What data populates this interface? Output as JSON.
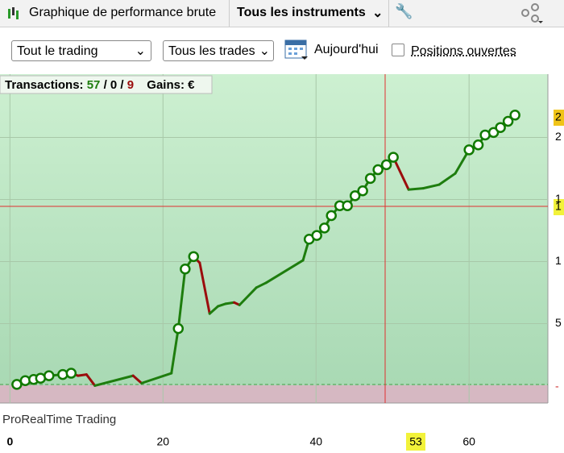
{
  "toolbar": {
    "tab_title": "Graphique de performance brute",
    "instruments": "Tous les instruments"
  },
  "controls": {
    "select_trading": "Tout le trading",
    "select_trades": "Tous les trades",
    "date": "Aujourd'hui",
    "checkbox": "Positions ouvertes"
  },
  "chart_data": {
    "type": "line",
    "legend": {
      "label": "Transactions:",
      "wins": "57",
      "sep1": "/",
      "neutral": "0",
      "sep2": "/",
      "losses": "9",
      "gains": "Gains: €"
    },
    "watermark": "ProRealTime Trading",
    "x": [
      0.9,
      2.0,
      3.1,
      4.0,
      5.1,
      6.9,
      8.0,
      8.9,
      10.0,
      11.1,
      16.1,
      17.2,
      21.1,
      22.0,
      22.9,
      24.0,
      24.8,
      26.1,
      27.2,
      28.2,
      29.3,
      30.0,
      32.2,
      33.5,
      38.3,
      39.1,
      40.1,
      41.1,
      42.0,
      43.1,
      44.1,
      45.1,
      46.1,
      47.1,
      48.1,
      49.2,
      50.1,
      52.1,
      54.0,
      56.1,
      58.2,
      60.0,
      61.2,
      62.1,
      63.2,
      64.1,
      65.1,
      66.0
    ],
    "values": [
      0.1,
      0.4,
      0.5,
      0.6,
      0.8,
      0.9,
      1.0,
      0.8,
      0.9,
      0.0,
      0.8,
      0.2,
      1.0,
      4.6,
      9.4,
      10.4,
      9.9,
      5.8,
      6.4,
      6.6,
      6.7,
      6.5,
      7.9,
      8.3,
      10.1,
      11.8,
      12.1,
      12.7,
      13.7,
      14.5,
      14.5,
      15.3,
      15.7,
      16.7,
      17.4,
      17.8,
      18.4,
      15.8,
      15.9,
      16.2,
      17.1,
      19.0,
      19.4,
      20.2,
      20.4,
      20.8,
      21.3,
      21.8
    ],
    "segment_colors": [
      null,
      "#1e7d0e",
      "#1e7d0e",
      "#1e7d0e",
      "#1e7d0e",
      "#1e7d0e",
      "#1e7d0e",
      "#9b0d0d",
      "#9b0d0d",
      "#9b0d0d",
      "#1e7d0e",
      "#9b0d0d",
      "#1e7d0e",
      "#1e7d0e",
      "#1e7d0e",
      "#1e7d0e",
      "#9b0d0d",
      "#9b0d0d",
      "#1e7d0e",
      "#1e7d0e",
      "#1e7d0e",
      "#9b0d0d",
      "#1e7d0e",
      "#1e7d0e",
      "#1e7d0e",
      "#1e7d0e",
      "#1e7d0e",
      "#1e7d0e",
      "#1e7d0e",
      "#1e7d0e",
      "#1e7d0e",
      "#1e7d0e",
      "#1e7d0e",
      "#1e7d0e",
      "#1e7d0e",
      "#1e7d0e",
      "#1e7d0e",
      "#9b0d0d",
      "#1e7d0e",
      "#1e7d0e",
      "#1e7d0e",
      "#1e7d0e",
      "#1e7d0e",
      "#1e7d0e",
      "#1e7d0e",
      "#1e7d0e",
      "#1e7d0e",
      "#1e7d0e"
    ],
    "markers": [
      true,
      true,
      true,
      true,
      true,
      true,
      true,
      false,
      false,
      false,
      false,
      false,
      false,
      true,
      true,
      true,
      false,
      false,
      false,
      false,
      false,
      false,
      false,
      false,
      false,
      true,
      true,
      true,
      true,
      true,
      true,
      true,
      true,
      true,
      true,
      true,
      true,
      false,
      false,
      false,
      false,
      true,
      true,
      true,
      true,
      true,
      true,
      true
    ],
    "marker_color": "#117a00",
    "xlim": [
      -1.3,
      70.3
    ],
    "ylim": [
      -1.4,
      25.1
    ],
    "xticks": [
      0,
      20,
      40,
      60
    ],
    "yticks": [
      5,
      {
        "value": 10,
        "label": "1"
      },
      {
        "value": 15,
        "label": "1"
      },
      {
        "value": 20,
        "label": "2"
      }
    ],
    "x_highlight": "53",
    "crosshair_label": "1",
    "last_value_label": "2",
    "zero_label": "-",
    "grid": true
  }
}
